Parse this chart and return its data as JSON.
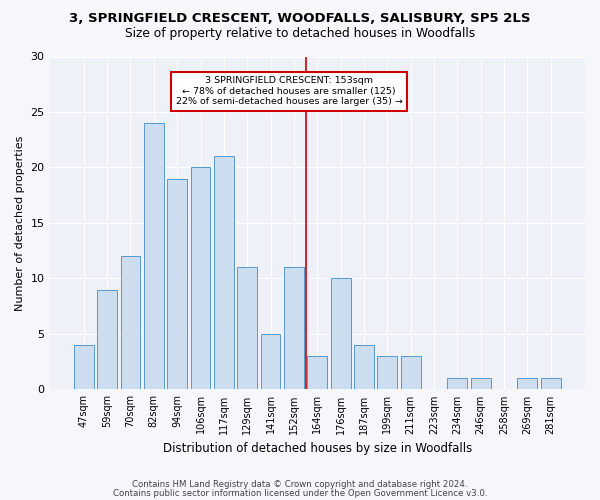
{
  "title1": "3, SPRINGFIELD CRESCENT, WOODFALLS, SALISBURY, SP5 2LS",
  "title2": "Size of property relative to detached houses in Woodfalls",
  "xlabel": "Distribution of detached houses by size in Woodfalls",
  "ylabel": "Number of detached properties",
  "categories": [
    "47sqm",
    "59sqm",
    "70sqm",
    "82sqm",
    "94sqm",
    "106sqm",
    "117sqm",
    "129sqm",
    "141sqm",
    "152sqm",
    "164sqm",
    "176sqm",
    "187sqm",
    "199sqm",
    "211sqm",
    "223sqm",
    "234sqm",
    "246sqm",
    "258sqm",
    "269sqm",
    "281sqm"
  ],
  "values": [
    4,
    9,
    12,
    24,
    19,
    20,
    21,
    11,
    5,
    11,
    3,
    10,
    4,
    3,
    3,
    0,
    1,
    1,
    0,
    1,
    1
  ],
  "bar_color": "#ccddf0",
  "bar_edge_color": "#5599cc",
  "ref_line_x": 9.5,
  "ref_line_label": "3 SPRINGFIELD CRESCENT: 153sqm",
  "annotation_line1": "← 78% of detached houses are smaller (125)",
  "annotation_line2": "22% of semi-detached houses are larger (35) →",
  "ref_line_color": "#cc0000",
  "annotation_box_edge_color": "#cc0000",
  "ylim": [
    0,
    30
  ],
  "yticks": [
    0,
    5,
    10,
    15,
    20,
    25,
    30
  ],
  "bg_color": "#eef2f8",
  "fig_bg_color": "#f5f7fa",
  "grid_color": "#ffffff",
  "footer1": "Contains HM Land Registry data © Crown copyright and database right 2024.",
  "footer2": "Contains public sector information licensed under the Open Government Licence v3.0."
}
